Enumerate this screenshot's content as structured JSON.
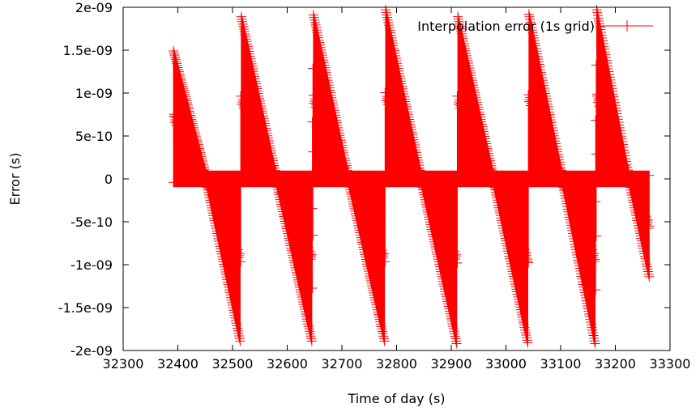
{
  "chart_data": {
    "type": "scatter",
    "title": "",
    "xlabel": "Time of day (s)",
    "ylabel": "Error (s)",
    "xlim": [
      32300,
      33300
    ],
    "ylim": [
      -2e-09,
      2e-09
    ],
    "x_ticks": [
      32300,
      32400,
      32500,
      32600,
      32700,
      32800,
      32900,
      33000,
      33100,
      33200,
      33300
    ],
    "x_tick_labels": [
      "32300",
      "32400",
      "32500",
      "32600",
      "32700",
      "32800",
      "32900",
      "33000",
      "33100",
      "33200",
      "33300"
    ],
    "y_ticks": [
      2e-09,
      1.5e-09,
      1e-09,
      5e-10,
      0,
      -5e-10,
      -1e-09,
      -1.5e-09,
      -2e-09
    ],
    "y_tick_labels": [
      "2e-09",
      "1.5e-09",
      "1e-09",
      "5e-10",
      "0",
      "-5e-10",
      "-1e-09",
      "-1.5e-09",
      "-2e-09"
    ],
    "grid": false,
    "legend_position": "top-right",
    "marker": "plus",
    "series": [
      {
        "name": "Interpolation error (1s grid)",
        "color": "#ff0000",
        "x_range": [
          32392,
          33262
        ],
        "step": 1,
        "envelope_upper": [
          [
            32392,
            1.45e-09
          ],
          [
            32452,
            0.0
          ],
          [
            32514,
            0.0
          ],
          [
            32516,
            1.85e-09
          ],
          [
            32580,
            0.0
          ],
          [
            32645,
            0.0
          ],
          [
            32648,
            1.87e-09
          ],
          [
            32712,
            0.0
          ],
          [
            32778,
            0.0
          ],
          [
            32780,
            1.93e-09
          ],
          [
            32845,
            0.0
          ],
          [
            32910,
            0.0
          ],
          [
            32912,
            1.85e-09
          ],
          [
            32977,
            0.0
          ],
          [
            33040,
            0.0
          ],
          [
            33042,
            1.88e-09
          ],
          [
            33103,
            0.0
          ],
          [
            33163,
            0.0
          ],
          [
            33166,
            1.93e-09
          ],
          [
            33225,
            0.0
          ],
          [
            33262,
            0.0
          ]
        ],
        "envelope_lower": [
          [
            32392,
            0.0
          ],
          [
            32452,
            0.0
          ],
          [
            32514,
            -1.85e-09
          ],
          [
            32516,
            0.0
          ],
          [
            32580,
            0.0
          ],
          [
            32645,
            -1.85e-09
          ],
          [
            32648,
            0.0
          ],
          [
            32712,
            0.0
          ],
          [
            32778,
            -1.85e-09
          ],
          [
            32780,
            0.0
          ],
          [
            32845,
            0.0
          ],
          [
            32910,
            -1.88e-09
          ],
          [
            32912,
            0.0
          ],
          [
            32977,
            0.0
          ],
          [
            33040,
            -1.87e-09
          ],
          [
            33042,
            0.0
          ],
          [
            33103,
            0.0
          ],
          [
            33163,
            -1.88e-09
          ],
          [
            33166,
            0.0
          ],
          [
            33225,
            0.0
          ],
          [
            33262,
            -1.1e-09
          ]
        ]
      }
    ]
  }
}
